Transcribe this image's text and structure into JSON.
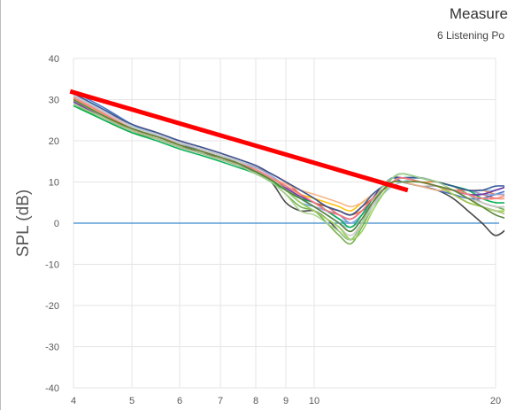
{
  "chart_data": {
    "type": "line",
    "title": "Measure",
    "subtitle": "6 Listening Po",
    "ylabel": "SPL (dB)",
    "xlabel": "",
    "x_scale": "log",
    "x_ticks": [
      4,
      5,
      6,
      7,
      8,
      9,
      10,
      20
    ],
    "x_tick_labels": [
      "4",
      "5",
      "6",
      "7",
      "8",
      "9",
      "10",
      "20"
    ],
    "y_ticks": [
      40,
      30,
      20,
      10,
      0,
      -10,
      -20,
      -30,
      -40
    ],
    "ylim": [
      -40,
      40
    ],
    "grid": true,
    "reference_line": {
      "y": 0,
      "color": "#5B9BD5"
    },
    "trend_line": {
      "x": [
        3.95,
        14.3
      ],
      "y": [
        32,
        8
      ],
      "color": "#FF0000"
    },
    "series_colors": [
      "#404040",
      "#5B9BD5",
      "#70AD47",
      "#ED7D31",
      "#E06666",
      "#4472C4",
      "#A5A5A5",
      "#FFC000",
      "#9DC3E6",
      "#C55A11",
      "#8FAADC",
      "#00B050",
      "#F4B183",
      "#7030A0",
      "#C9C9C9",
      "#92D050",
      "#2F5597",
      "#FF7C80",
      "#A9D18E",
      "#548235"
    ],
    "series": [
      {
        "x": [
          4,
          4.5,
          5,
          5.5,
          6,
          6.5,
          7,
          7.5,
          8,
          8.5,
          9,
          9.5,
          10,
          10.5,
          11,
          11.5,
          12,
          12.5,
          13,
          13.5,
          14,
          15,
          16,
          17,
          18,
          19,
          20,
          21
        ],
        "y": [
          30,
          26,
          23,
          21,
          19,
          17,
          16,
          14,
          12,
          10,
          5,
          3,
          3,
          1,
          -2,
          -4,
          0,
          5,
          9,
          11,
          10,
          9,
          8,
          6,
          3,
          0,
          -3,
          -1
        ]
      },
      {
        "x": [
          4,
          4.5,
          5,
          5.5,
          6,
          6.5,
          7,
          7.5,
          8,
          8.5,
          9,
          9.5,
          10,
          10.5,
          11,
          11.5,
          12,
          12.5,
          13,
          13.5,
          14,
          15,
          16,
          17,
          18,
          19,
          20,
          21
        ],
        "y": [
          31,
          27,
          23.5,
          21.5,
          19.5,
          18,
          16.5,
          15,
          13,
          11,
          8,
          5,
          4,
          3,
          2,
          0,
          2,
          5,
          8,
          10,
          11,
          10,
          9,
          8,
          7,
          7,
          8,
          9
        ]
      },
      {
        "x": [
          4,
          4.5,
          5,
          5.5,
          6,
          6.5,
          7,
          7.5,
          8,
          8.5,
          9,
          9.5,
          10,
          10.5,
          11,
          11.5,
          12,
          12.5,
          13,
          13.5,
          14,
          15,
          16,
          17,
          18,
          19,
          20,
          21
        ],
        "y": [
          29,
          25,
          22,
          20.5,
          18.5,
          17,
          15.5,
          14,
          12,
          10,
          7,
          4,
          3,
          0,
          -3,
          -5,
          -1,
          4,
          8,
          11,
          12,
          11,
          10,
          9,
          7,
          5,
          4,
          3
        ]
      },
      {
        "x": [
          4,
          4.5,
          5,
          5.5,
          6,
          6.5,
          7,
          7.5,
          8,
          8.5,
          9,
          9.5,
          10,
          10.5,
          11,
          11.5,
          12,
          12.5,
          13,
          13.5,
          14,
          15,
          16,
          17,
          18,
          19,
          20,
          21
        ],
        "y": [
          30.5,
          26.5,
          23,
          21,
          19.5,
          18,
          16.5,
          15,
          13.5,
          12,
          10,
          8,
          6,
          4,
          3,
          2,
          3,
          5,
          8,
          10,
          11,
          10,
          10,
          9,
          8,
          8,
          7,
          7
        ]
      },
      {
        "x": [
          4,
          4.5,
          5,
          5.5,
          6,
          6.5,
          7,
          7.5,
          8,
          8.5,
          9,
          9.5,
          10,
          10.5,
          11,
          11.5,
          12,
          12.5,
          13,
          13.5,
          14,
          15,
          16,
          17,
          18,
          19,
          20,
          21
        ],
        "y": [
          31,
          27,
          24,
          22,
          20,
          18.5,
          17,
          15.5,
          14,
          12,
          10,
          7,
          5,
          4,
          2,
          1,
          3,
          6,
          9,
          11,
          11,
          10,
          9,
          8,
          8,
          7,
          6,
          6
        ]
      },
      {
        "x": [
          4,
          4.5,
          5,
          5.5,
          6,
          6.5,
          7,
          7.5,
          8,
          8.5,
          9,
          9.5,
          10,
          10.5,
          11,
          11.5,
          12,
          12.5,
          13,
          13.5,
          14,
          15,
          16,
          17,
          18,
          19,
          20,
          21
        ],
        "y": [
          32,
          28,
          24,
          21.5,
          19.5,
          17.5,
          16,
          14.5,
          12.5,
          10.5,
          8,
          6,
          5,
          3,
          1,
          0,
          2,
          6,
          9,
          11,
          10,
          9,
          8,
          7,
          6,
          6,
          7,
          8
        ]
      },
      {
        "x": [
          4,
          4.5,
          5,
          5.5,
          6,
          6.5,
          7,
          7.5,
          8,
          8.5,
          9,
          9.5,
          10,
          10.5,
          11,
          11.5,
          12,
          12.5,
          13,
          13.5,
          14,
          15,
          16,
          17,
          18,
          19,
          20,
          21
        ],
        "y": [
          29.5,
          25.5,
          22.5,
          20.5,
          18.5,
          17,
          15.5,
          14,
          12.5,
          10.5,
          8,
          6,
          4,
          2,
          0,
          -2,
          1,
          5,
          8,
          10,
          10,
          9,
          9,
          8,
          7,
          5,
          4,
          4
        ]
      },
      {
        "x": [
          4,
          4.5,
          5,
          5.5,
          6,
          6.5,
          7,
          7.5,
          8,
          8.5,
          9,
          9.5,
          10,
          10.5,
          11,
          11.5,
          12,
          12.5,
          13,
          13.5,
          14,
          15,
          16,
          17,
          18,
          19,
          20,
          21
        ],
        "y": [
          30,
          26,
          23,
          21,
          19,
          17.5,
          16,
          14.5,
          13,
          11,
          9,
          7,
          6,
          5,
          4,
          3,
          5,
          7,
          9,
          10,
          10,
          10,
          9,
          8,
          6,
          4,
          3,
          3
        ]
      },
      {
        "x": [
          4,
          4.5,
          5,
          5.5,
          6,
          6.5,
          7,
          7.5,
          8,
          8.5,
          9,
          9.5,
          10,
          10.5,
          11,
          11.5,
          12,
          12.5,
          13,
          13.5,
          14,
          15,
          16,
          17,
          18,
          19,
          20,
          21
        ],
        "y": [
          31.5,
          27.5,
          24,
          21.5,
          19.5,
          18,
          16.5,
          15,
          13,
          11,
          9,
          6,
          4,
          2,
          0,
          -1,
          1,
          4,
          7,
          9,
          10,
          11,
          10,
          9,
          8,
          8,
          8,
          9
        ]
      },
      {
        "x": [
          4,
          4.5,
          5,
          5.5,
          6,
          6.5,
          7,
          7.5,
          8,
          8.5,
          9,
          9.5,
          10,
          10.5,
          11,
          11.5,
          12,
          12.5,
          13,
          13.5,
          14,
          15,
          16,
          17,
          18,
          19,
          20,
          21
        ],
        "y": [
          30,
          26,
          22.5,
          20.5,
          18.5,
          17,
          15.5,
          14,
          12.5,
          10.5,
          9,
          7,
          5,
          4,
          3,
          2,
          4,
          6,
          8,
          10,
          11,
          10,
          9,
          7,
          5,
          4,
          3,
          2
        ]
      },
      {
        "x": [
          4,
          4.5,
          5,
          5.5,
          6,
          6.5,
          7,
          7.5,
          8,
          8.5,
          9,
          9.5,
          10,
          10.5,
          11,
          11.5,
          12,
          12.5,
          13,
          13.5,
          14,
          15,
          16,
          17,
          18,
          19,
          20,
          21
        ],
        "y": [
          31,
          27,
          23.5,
          21.5,
          19.5,
          18,
          16.5,
          15,
          13.5,
          11.5,
          9,
          6,
          4,
          3,
          1,
          0,
          2,
          5,
          8,
          10,
          11,
          11,
          10,
          9,
          8,
          7,
          7,
          7
        ]
      },
      {
        "x": [
          4,
          4.5,
          5,
          5.5,
          6,
          6.5,
          7,
          7.5,
          8,
          8.5,
          9,
          9.5,
          10,
          10.5,
          11,
          11.5,
          12,
          12.5,
          13,
          13.5,
          14,
          15,
          16,
          17,
          18,
          19,
          20,
          21
        ],
        "y": [
          28.5,
          25,
          22,
          20,
          18,
          16.5,
          15,
          13.5,
          12,
          10,
          8,
          6,
          5,
          3,
          1,
          -1,
          2,
          6,
          9,
          11,
          12,
          11,
          10,
          9,
          8,
          6,
          5,
          5
        ]
      },
      {
        "x": [
          4,
          4.5,
          5,
          5.5,
          6,
          6.5,
          7,
          7.5,
          8,
          8.5,
          9,
          9.5,
          10,
          10.5,
          11,
          11.5,
          12,
          12.5,
          13,
          13.5,
          14,
          15,
          16,
          17,
          18,
          19,
          20,
          21
        ],
        "y": [
          30.5,
          26.5,
          23,
          21,
          19,
          17.5,
          16,
          14.5,
          13,
          11,
          9.5,
          8,
          7,
          6,
          5,
          4,
          5,
          7,
          9,
          10,
          10,
          9,
          8,
          8,
          7,
          6,
          6,
          6
        ]
      },
      {
        "x": [
          4,
          4.5,
          5,
          5.5,
          6,
          6.5,
          7,
          7.5,
          8,
          8.5,
          9,
          9.5,
          10,
          10.5,
          11,
          11.5,
          12,
          12.5,
          13,
          13.5,
          14,
          15,
          16,
          17,
          18,
          19,
          20,
          21
        ],
        "y": [
          29.5,
          25.5,
          22.5,
          20.5,
          18.5,
          17,
          15.5,
          14,
          12.5,
          10.5,
          8.5,
          6.5,
          5,
          3,
          2,
          1,
          3,
          6,
          9,
          10,
          11,
          10,
          9,
          8,
          7,
          7,
          8,
          9
        ]
      },
      {
        "x": [
          4,
          4.5,
          5,
          5.5,
          6,
          6.5,
          7,
          7.5,
          8,
          8.5,
          9,
          9.5,
          10,
          10.5,
          11,
          11.5,
          12,
          12.5,
          13,
          13.5,
          14,
          15,
          16,
          17,
          18,
          19,
          20,
          21
        ],
        "y": [
          31,
          27,
          23.5,
          21.5,
          19.5,
          18,
          16.5,
          15,
          13,
          11,
          8,
          5,
          3,
          1,
          -1,
          -3,
          0,
          4,
          8,
          10,
          11,
          10,
          9,
          8,
          6,
          5,
          4,
          4
        ]
      },
      {
        "x": [
          4,
          4.5,
          5,
          5.5,
          6,
          6.5,
          7,
          7.5,
          8,
          8.5,
          9,
          9.5,
          10,
          10.5,
          11,
          11.5,
          12,
          12.5,
          13,
          13.5,
          14,
          15,
          16,
          17,
          18,
          19,
          20,
          21
        ],
        "y": [
          30,
          26,
          23,
          21,
          19,
          17.5,
          16,
          14.5,
          12.5,
          10.5,
          8,
          5,
          3,
          1,
          -1,
          -4,
          -2,
          3,
          7,
          10,
          11,
          10,
          9,
          7,
          5,
          4,
          3,
          3
        ]
      },
      {
        "x": [
          4,
          4.5,
          5,
          5.5,
          6,
          6.5,
          7,
          7.5,
          8,
          8.5,
          9,
          9.5,
          10,
          10.5,
          11,
          11.5,
          12,
          12.5,
          13,
          13.5,
          14,
          15,
          16,
          17,
          18,
          19,
          20,
          21
        ],
        "y": [
          31.5,
          27.5,
          24,
          22,
          20,
          18.5,
          17,
          15.5,
          14,
          12,
          10,
          8,
          6,
          4,
          3,
          2,
          4,
          7,
          9,
          11,
          11,
          11,
          10,
          9,
          8,
          8,
          9,
          9
        ]
      },
      {
        "x": [
          4,
          4.5,
          5,
          5.5,
          6,
          6.5,
          7,
          7.5,
          8,
          8.5,
          9,
          9.5,
          10,
          10.5,
          11,
          11.5,
          12,
          12.5,
          13,
          13.5,
          14,
          15,
          16,
          17,
          18,
          19,
          20,
          21
        ],
        "y": [
          30.5,
          26.5,
          23,
          21,
          19,
          17.5,
          16,
          14.5,
          13,
          11,
          9,
          7,
          5,
          3,
          2,
          1,
          3,
          6,
          8,
          10,
          11,
          10,
          9,
          8,
          7,
          6,
          6,
          7
        ]
      },
      {
        "x": [
          4,
          4.5,
          5,
          5.5,
          6,
          6.5,
          7,
          7.5,
          8,
          8.5,
          9,
          9.5,
          10,
          10.5,
          11,
          11.5,
          12,
          12.5,
          13,
          13.5,
          14,
          15,
          16,
          17,
          18,
          19,
          20,
          21
        ],
        "y": [
          29,
          25.5,
          22.5,
          20.5,
          18.5,
          17,
          15.5,
          14,
          12,
          10,
          7,
          3,
          2,
          0,
          -2,
          -4,
          0,
          5,
          9,
          11,
          12,
          11,
          10,
          8,
          6,
          4,
          3,
          2
        ]
      },
      {
        "x": [
          4,
          4.5,
          5,
          5.5,
          6,
          6.5,
          7,
          7.5,
          8,
          8.5,
          9,
          9.5,
          10,
          10.5,
          11,
          11.5,
          12,
          12.5,
          13,
          13.5,
          14,
          15,
          16,
          17,
          18,
          19,
          20,
          21
        ],
        "y": [
          30,
          26,
          23,
          21,
          19,
          17.5,
          16,
          14.5,
          12.5,
          10.5,
          8,
          6,
          4,
          2,
          0,
          -2,
          1,
          5,
          8,
          10,
          10,
          10,
          9,
          8,
          6,
          4,
          2,
          1
        ]
      }
    ]
  }
}
